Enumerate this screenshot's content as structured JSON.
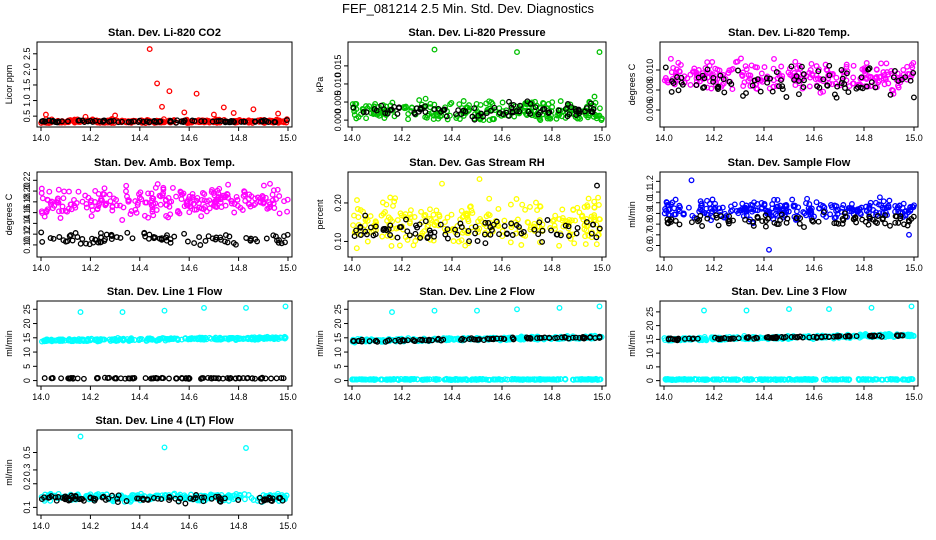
{
  "page_title": "FEF_081214  2.5 Min. Std. Dev. Diagnostics",
  "colors": {
    "co2": "#ff0000",
    "pressure": "#00c000",
    "li820_temp": "#ff00ff",
    "box_temp": "#ff00ff",
    "rh": "#ffff00",
    "sample_flow": "#0000ff",
    "line_flow": "#00ffff",
    "overlay": "#000000"
  },
  "chart_data": [
    {
      "type": "scatter",
      "title": "Stan. Dev. Li-820 CO2",
      "xlabel": "",
      "ylabel": "Licor ppm",
      "xlim": [
        14.0,
        15.0
      ],
      "ylim": [
        0.28,
        2.75
      ],
      "xticks": [
        "14.0",
        "14.2",
        "14.4",
        "14.6",
        "14.8",
        "15.0"
      ],
      "yticks": [
        "0.5",
        "1.0",
        "1.5",
        "2.0",
        "2.5"
      ],
      "series": [
        {
          "role": "main",
          "color": "#ff0000",
          "base": 0.33,
          "spread": 0.05,
          "outliers": [
            [
              14.02,
              0.55
            ],
            [
              14.18,
              0.48
            ],
            [
              14.3,
              0.52
            ],
            [
              14.44,
              2.65
            ],
            [
              14.47,
              1.55
            ],
            [
              14.49,
              0.8
            ],
            [
              14.52,
              1.3
            ],
            [
              14.58,
              0.62
            ],
            [
              14.63,
              1.22
            ],
            [
              14.7,
              0.55
            ],
            [
              14.74,
              0.78
            ],
            [
              14.78,
              0.6
            ],
            [
              14.86,
              0.72
            ],
            [
              14.96,
              0.58
            ]
          ]
        },
        {
          "role": "overlay",
          "color": "#000000",
          "base": 0.33,
          "spread": 0.03
        }
      ]
    },
    {
      "type": "scatter",
      "title": "Stan. Dev. Li-820 Pressure",
      "xlabel": "",
      "ylabel": "kPa",
      "xlim": [
        14.0,
        15.0
      ],
      "ylim": [
        -0.0008,
        0.0205
      ],
      "xticks": [
        "14.0",
        "14.2",
        "14.4",
        "14.6",
        "14.8",
        "15.0"
      ],
      "yticks": [
        "0.000",
        "0.005",
        "0.010",
        "0.015"
      ],
      "series": [
        {
          "role": "main",
          "color": "#00c000",
          "base": 0.0025,
          "spread": 0.0023,
          "outliers": [
            [
              14.33,
              0.0195
            ],
            [
              14.66,
              0.0188
            ],
            [
              14.99,
              0.0188
            ],
            [
              14.97,
              0.0065
            ]
          ]
        },
        {
          "role": "overlay",
          "color": "#000000",
          "base": 0.0025,
          "spread": 0.0018
        }
      ]
    },
    {
      "type": "scatter",
      "title": "Stan. Dev. Li-820 Temp.",
      "xlabel": "",
      "ylabel": "degrees C",
      "xlim": [
        14.0,
        15.0
      ],
      "ylim": [
        0.0047,
        0.0124
      ],
      "xticks": [
        "14.0",
        "14.2",
        "14.4",
        "14.6",
        "14.8",
        "15.0"
      ],
      "yticks": [
        "0.006",
        "0.008",
        "0.010"
      ],
      "series": [
        {
          "role": "main",
          "color": "#ff00ff",
          "base": 0.0094,
          "spread": 0.0012,
          "outliers": []
        },
        {
          "role": "overlay",
          "color": "#000000",
          "base": 0.0088,
          "spread": 0.0012
        }
      ]
    },
    {
      "type": "scatter",
      "title": "Stan. Dev. Amb. Box Temp.",
      "xlabel": "",
      "ylabel": "degrees C",
      "xlim": [
        14.0,
        15.0
      ],
      "ylim": [
        0.085,
        0.228
      ],
      "xticks": [
        "14.0",
        "14.2",
        "14.4",
        "14.6",
        "14.8",
        "15.0"
      ],
      "yticks": [
        "0.10",
        "0.12",
        "0.14",
        "0.16",
        "0.18",
        "0.20",
        "0.22"
      ],
      "series": [
        {
          "role": "main",
          "color": "#ff00ff",
          "base": 0.175,
          "spread": 0.022,
          "trend": 0.012,
          "outliers": []
        },
        {
          "role": "overlay",
          "color": "#000000",
          "base": 0.112,
          "spread": 0.01,
          "trend": 0.0
        }
      ]
    },
    {
      "type": "scatter",
      "title": "Stan. Dev. Gas Stream RH",
      "xlabel": "",
      "ylabel": "percent",
      "xlim": [
        14.0,
        15.0
      ],
      "ylim": [
        0.07,
        0.27
      ],
      "xticks": [
        "14.0",
        "14.2",
        "14.4",
        "14.6",
        "14.8",
        "15.0"
      ],
      "yticks": [
        "0.10",
        "0.20"
      ],
      "series": [
        {
          "role": "main",
          "color": "#ffff00",
          "base": 0.15,
          "spread": 0.045,
          "outliers": [
            [
              14.51,
              0.262
            ],
            [
              14.36,
              0.25
            ]
          ]
        },
        {
          "role": "overlay",
          "color": "#000000",
          "base": 0.13,
          "spread": 0.025,
          "outliers": [
            [
              14.98,
              0.245
            ]
          ]
        }
      ]
    },
    {
      "type": "scatter",
      "title": "Stan. Dev. Sample Flow",
      "xlabel": "",
      "ylabel": "ml/min",
      "xlim": [
        14.0,
        15.0
      ],
      "ylim": [
        0.53,
        1.25
      ],
      "xticks": [
        "14.0",
        "14.2",
        "14.4",
        "14.6",
        "14.8",
        "15.0"
      ],
      "yticks": [
        "0.6",
        "0.7",
        "0.8",
        "0.9",
        "1.0",
        "1.1",
        "1.2"
      ],
      "series": [
        {
          "role": "main",
          "color": "#0000ff",
          "base": 0.93,
          "spread": 0.075,
          "outliers": [
            [
              14.11,
              1.21
            ],
            [
              14.42,
              0.56
            ],
            [
              14.98,
              0.7
            ]
          ]
        },
        {
          "role": "overlay",
          "color": "#000000",
          "base": 0.84,
          "spread": 0.05
        }
      ]
    },
    {
      "type": "scatter",
      "title": "Stan. Dev. Line 1 Flow",
      "xlabel": "",
      "ylabel": "ml/min",
      "xlim": [
        14.0,
        15.0
      ],
      "ylim": [
        -0.5,
        26.5
      ],
      "xticks": [
        "14.0",
        "14.2",
        "14.4",
        "14.6",
        "14.8",
        "15.0"
      ],
      "yticks": [
        "0",
        "5",
        "10",
        "15",
        "20",
        "25"
      ],
      "series": [
        {
          "role": "main",
          "color": "#00ffff",
          "base": 14.0,
          "spread": 0.4,
          "trend": 1.0,
          "outliers": [
            [
              14.16,
              24.0
            ],
            [
              14.33,
              24.0
            ],
            [
              14.5,
              24.5
            ],
            [
              14.66,
              25.5
            ],
            [
              14.83,
              25.5
            ],
            [
              14.99,
              26.0
            ]
          ]
        },
        {
          "role": "overlay",
          "color": "#000000",
          "base": 0.8,
          "spread": 0.15
        }
      ]
    },
    {
      "type": "scatter",
      "title": "Stan. Dev. Line 2 Flow",
      "xlabel": "",
      "ylabel": "ml/min",
      "xlim": [
        14.0,
        15.0
      ],
      "ylim": [
        -0.5,
        26.5
      ],
      "xticks": [
        "14.0",
        "14.2",
        "14.4",
        "14.6",
        "14.8",
        "15.0"
      ],
      "yticks": [
        "0",
        "5",
        "10",
        "15",
        "20",
        "25"
      ],
      "series": [
        {
          "role": "main",
          "color": "#00ffff",
          "base": 0.4,
          "spread": 0.15,
          "outliers": [
            [
              14.16,
              24.0
            ],
            [
              14.33,
              24.5
            ],
            [
              14.5,
              24.5
            ],
            [
              14.66,
              25.0
            ],
            [
              14.83,
              25.5
            ],
            [
              14.99,
              26.0
            ]
          ]
        },
        {
          "role": "main",
          "color": "#00ffff",
          "base": 14.0,
          "spread": 0.5,
          "trend": 1.2,
          "outliers": []
        },
        {
          "role": "overlay",
          "color": "#000000",
          "base": 13.8,
          "spread": 0.3,
          "trend": 1.4
        }
      ]
    },
    {
      "type": "scatter",
      "title": "Stan. Dev. Line 3 Flow",
      "xlabel": "",
      "ylabel": "ml/min",
      "xlim": [
        14.0,
        15.0
      ],
      "ylim": [
        -0.5,
        27.5
      ],
      "xticks": [
        "14.0",
        "14.2",
        "14.4",
        "14.6",
        "14.8",
        "15.0"
      ],
      "yticks": [
        "0",
        "5",
        "10",
        "15",
        "20",
        "25"
      ],
      "series": [
        {
          "role": "main",
          "color": "#00ffff",
          "base": 0.4,
          "spread": 0.15,
          "outliers": [
            [
              14.16,
              25.5
            ],
            [
              14.33,
              25.5
            ],
            [
              14.5,
              26.0
            ],
            [
              14.66,
              26.0
            ],
            [
              14.83,
              26.5
            ],
            [
              14.99,
              27.0
            ]
          ]
        },
        {
          "role": "main",
          "color": "#00ffff",
          "base": 15.0,
          "spread": 0.5,
          "trend": 1.5,
          "outliers": []
        },
        {
          "role": "overlay",
          "color": "#000000",
          "base": 15.0,
          "spread": 0.3,
          "trend": 1.5
        }
      ]
    },
    {
      "type": "scatter",
      "title": "Stan. Dev. Line 4 (LT) Flow",
      "xlabel": "",
      "ylabel": "ml/min",
      "xlim": [
        14.0,
        15.0
      ],
      "ylim": [
        0.09,
        0.86
      ],
      "yscale": "log",
      "xticks": [
        "14.0",
        "14.2",
        "14.4",
        "14.6",
        "14.8",
        "15.0"
      ],
      "yticks": [
        "0.1",
        "0.2",
        "0.3",
        "0.5"
      ],
      "series": [
        {
          "role": "main",
          "color": "#00ffff",
          "base": 0.135,
          "spread": 0.012,
          "outliers": [
            [
              14.16,
              0.8
            ],
            [
              14.5,
              0.58
            ],
            [
              14.83,
              0.57
            ]
          ]
        },
        {
          "role": "overlay",
          "color": "#000000",
          "base": 0.13,
          "spread": 0.012
        }
      ]
    }
  ]
}
